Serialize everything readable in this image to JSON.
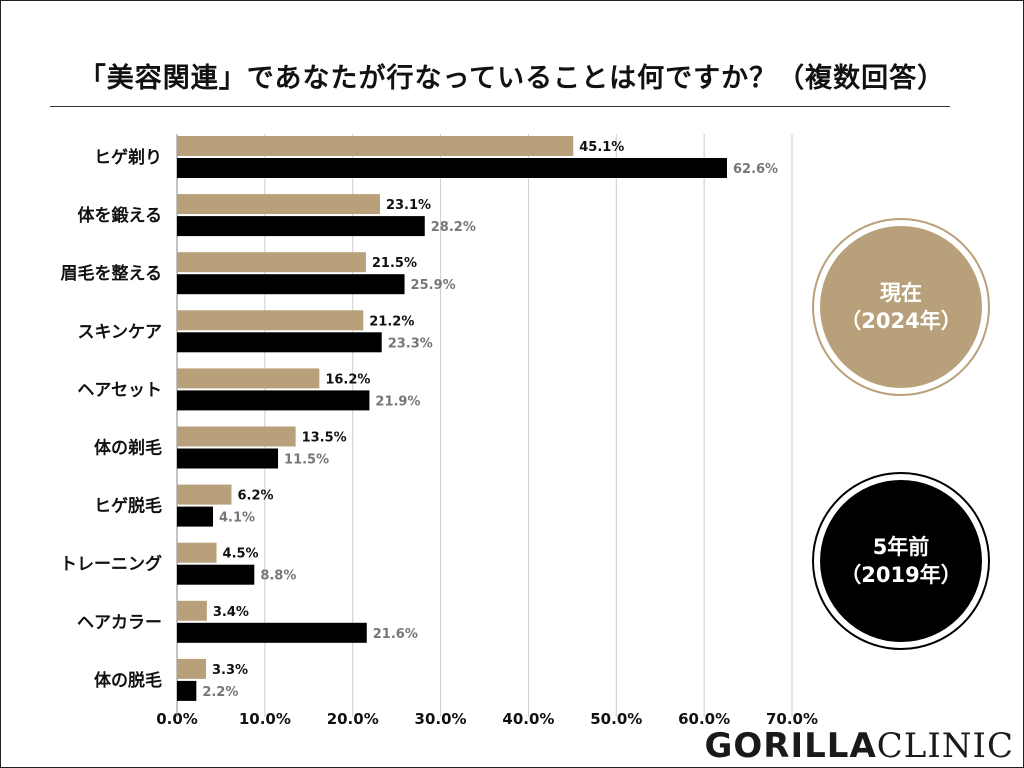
{
  "title": "「美容関連」であなたが行なっていることは何ですか？（複数回答）",
  "legend": {
    "current_line1": "現在",
    "current_line2": "（2024年）",
    "past_line1": "5年前",
    "past_line2": "（2019年）"
  },
  "logo": {
    "bold_part": "GORILLA",
    "light_part": "CLINIC"
  },
  "colors": {
    "current": "#b8a07a",
    "past": "#000000",
    "grid": "#cccccc"
  },
  "chart_data": {
    "type": "bar",
    "orientation": "horizontal",
    "title": "「美容関連」であなたが行なっていることは何ですか？（複数回答）",
    "categories": [
      "ヒゲ剃り",
      "体を鍛える",
      "眉毛を整える",
      "スキンケア",
      "ヘアセット",
      "体の剃毛",
      "ヒゲ脱毛",
      "トレーニング",
      "ヘアカラー",
      "体の脱毛"
    ],
    "series": [
      {
        "name": "現在（2024年）",
        "values": [
          45.1,
          23.1,
          21.5,
          21.2,
          16.2,
          13.5,
          6.2,
          4.5,
          3.4,
          3.3
        ]
      },
      {
        "name": "5年前（2019年）",
        "values": [
          62.6,
          28.2,
          25.9,
          23.3,
          21.9,
          11.5,
          4.1,
          8.8,
          21.6,
          2.2
        ]
      }
    ],
    "xlim": [
      0,
      70
    ],
    "x_ticks": [
      "0.0%",
      "10.0%",
      "20.0%",
      "30.0%",
      "40.0%",
      "50.0%",
      "60.0%",
      "70.0%"
    ],
    "value_suffix": "%",
    "grid": true
  }
}
